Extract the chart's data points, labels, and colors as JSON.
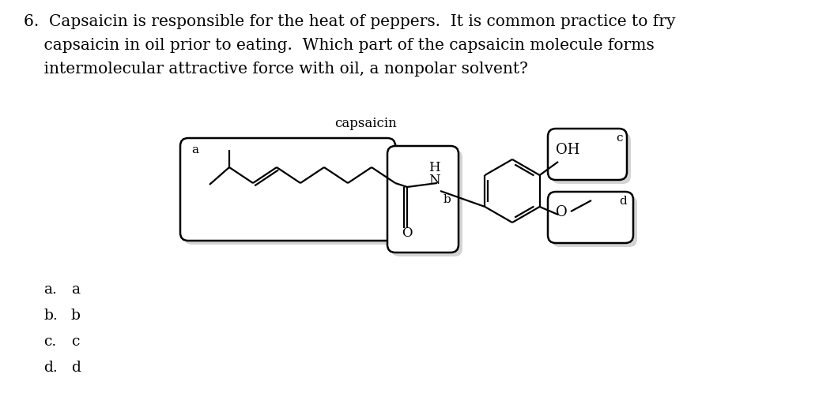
{
  "background_color": "#ffffff",
  "title_line1": "6.  Capsaicin is responsible for the heat of peppers.  It is common practice to fry",
  "title_line2": "    capsaicin in oil prior to eating.  Which part of the capsaicin molecule forms",
  "title_line3": "    intermolecular attractive force with oil, a nonpolar solvent?",
  "capsaicin_label": "capsaicin",
  "answer_options": [
    [
      "a.",
      "a"
    ],
    [
      "b.",
      "b"
    ],
    [
      "c.",
      "c"
    ],
    [
      "d.",
      "d"
    ]
  ],
  "fig_width": 10.36,
  "fig_height": 5.12,
  "dpi": 100,
  "mol_color": "#000000",
  "shadow_color": "#aaaaaa",
  "box_edge_color": "#000000"
}
